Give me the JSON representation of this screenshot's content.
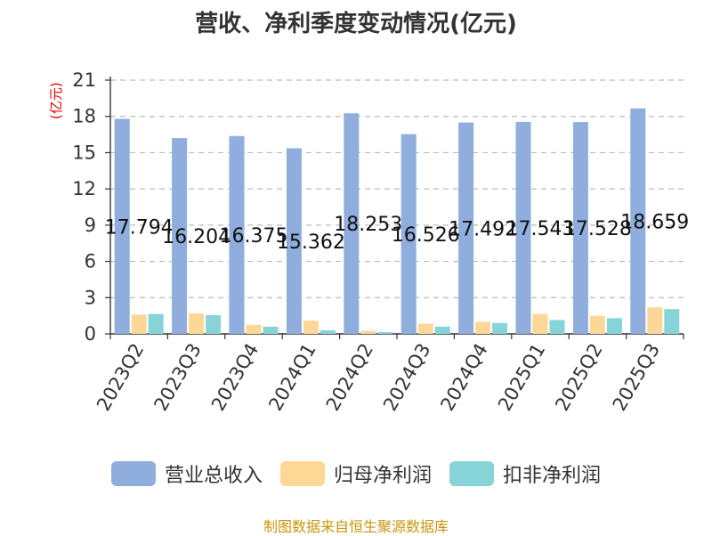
{
  "chart_data": {
    "type": "bar",
    "title": "营收、净利季度变动情况(亿元)",
    "ylabel": "(亿元)",
    "ylim": [
      0,
      21
    ],
    "yticks": [
      0,
      3,
      6,
      9,
      12,
      15,
      18,
      21
    ],
    "grid": true,
    "legend_position": "bottom",
    "categories": [
      "2023Q2",
      "2023Q3",
      "2023Q4",
      "2024Q1",
      "2024Q2",
      "2024Q3",
      "2024Q4",
      "2025Q1",
      "2025Q2",
      "2025Q3"
    ],
    "series": [
      {
        "name": "营业总收入",
        "color": "#8faedd",
        "values": [
          17.794,
          16.204,
          16.375,
          15.362,
          18.253,
          16.526,
          17.492,
          17.543,
          17.528,
          18.659
        ],
        "labels": [
          "17.794",
          "16.204",
          "16.375",
          "15.362",
          "18.253",
          "16.526",
          "17.492",
          "17.543",
          "17.528",
          "18.659"
        ]
      },
      {
        "name": "归母净利润",
        "color": "#fdd796",
        "values": [
          1.6,
          1.7,
          0.75,
          1.1,
          0.25,
          0.85,
          1.0,
          1.65,
          1.5,
          2.2
        ]
      },
      {
        "name": "扣非净利润",
        "color": "#86d4d8",
        "values": [
          1.65,
          1.55,
          0.6,
          0.3,
          0.15,
          0.6,
          0.9,
          1.15,
          1.3,
          2.05
        ]
      }
    ]
  },
  "source_note": "制图数据来自恒生聚源数据库"
}
